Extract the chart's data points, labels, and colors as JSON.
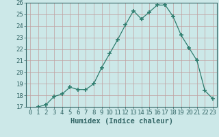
{
  "x": [
    0,
    1,
    2,
    3,
    4,
    5,
    6,
    7,
    8,
    9,
    10,
    11,
    12,
    13,
    14,
    15,
    16,
    17,
    18,
    19,
    20,
    21,
    22,
    23
  ],
  "y": [
    16.7,
    17.0,
    17.2,
    17.9,
    18.1,
    18.7,
    18.5,
    18.5,
    19.0,
    20.4,
    21.6,
    22.8,
    24.1,
    25.3,
    24.6,
    25.2,
    25.8,
    25.8,
    24.8,
    23.2,
    22.1,
    21.0,
    18.4,
    17.7
  ],
  "line_color": "#2e7d6e",
  "marker": "+",
  "marker_size": 4,
  "bg_color": "#cce8e8",
  "grid_color": "#c0a0a0",
  "xlabel": "Humidex (Indice chaleur)",
  "ylim": [
    17,
    26
  ],
  "xlim": [
    -0.5,
    23.5
  ],
  "yticks": [
    17,
    18,
    19,
    20,
    21,
    22,
    23,
    24,
    25,
    26
  ],
  "xticks": [
    0,
    1,
    2,
    3,
    4,
    5,
    6,
    7,
    8,
    9,
    10,
    11,
    12,
    13,
    14,
    15,
    16,
    17,
    18,
    19,
    20,
    21,
    22,
    23
  ],
  "axis_fontsize": 6.5,
  "label_fontsize": 7.5
}
